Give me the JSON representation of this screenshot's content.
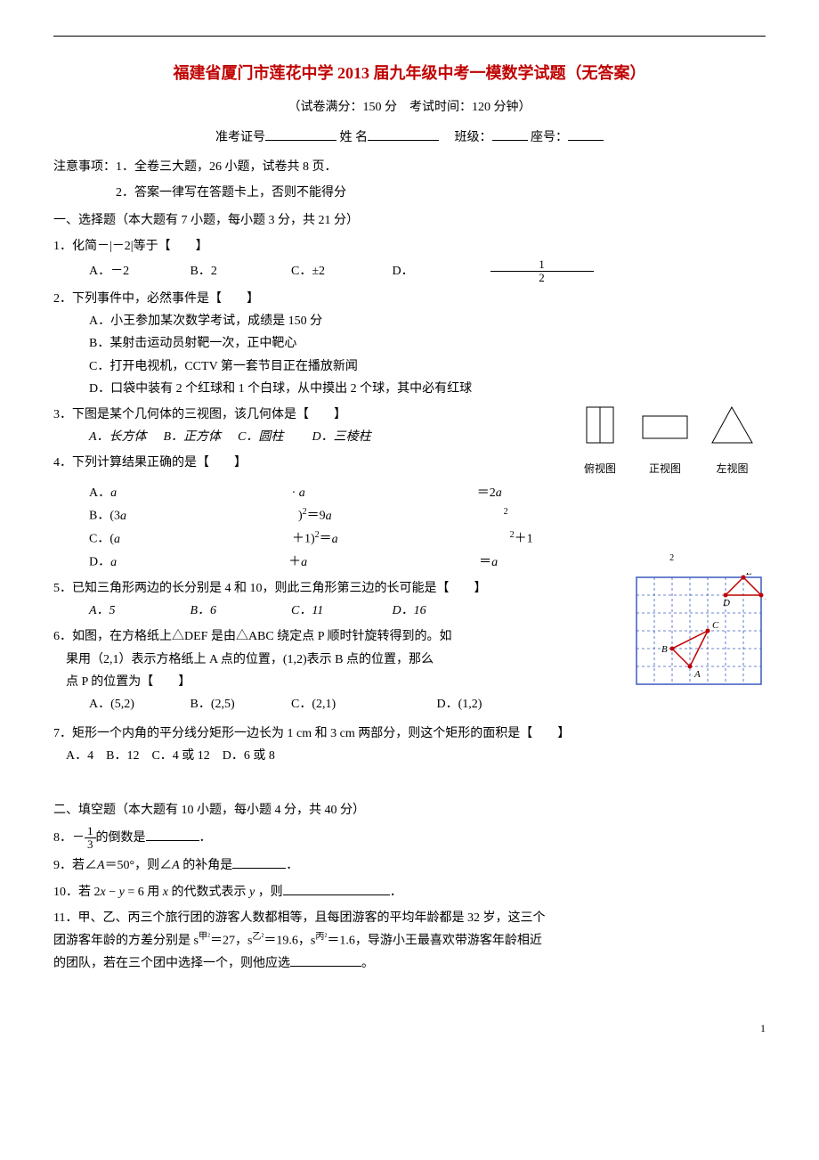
{
  "title": "福建省厦门市莲花中学 2013 届九年级中考一模数学试题（无答案）",
  "subtitle": "（试卷满分：150 分　考试时间：120 分钟）",
  "id_line": {
    "label_ticket": "准考证号",
    "label_name": "姓 名",
    "label_class": "班级：",
    "label_seat": "座号："
  },
  "notices": {
    "prefix": "注意事项：",
    "n1": "1．全卷三大题，26 小题，试卷共 8 页．",
    "n2": "2．答案一律写在答题卡上，否则不能得分"
  },
  "sec1": "一、选择题（本大题有 7 小题，每小题 3 分，共 21 分）",
  "q1": {
    "stem": "1．化简－|－2|等于【　　】",
    "A": "A．－2",
    "B": "B．2",
    "C": "C．±2",
    "D_prefix": "D．",
    "D_num": "1",
    "D_den": "2"
  },
  "q2": {
    "stem": "2．下列事件中，必然事件是【　　】",
    "A": "A．小王参加某次数学考试，成绩是 150 分",
    "B": "B．某射击运动员射靶一次，正中靶心",
    "C": "C．打开电视机，CCTV 第一套节目正在播放新闻",
    "D": "D．口袋中装有 2 个红球和 1 个白球，从中摸出 2 个球，其中必有红球"
  },
  "q3": {
    "stem": "3．下图是某个几何体的三视图，该几何体是【　　】",
    "A": "A．长方体",
    "B": "B．正方体",
    "C": "C．圆柱",
    "D": "D．三棱柱",
    "view_labels": {
      "top": "俯视图",
      "front": "正视图",
      "left": "左视图"
    }
  },
  "q4": {
    "stem": "4．下列计算结果正确的是【　　】",
    "A": "A．a · a＝2a",
    "B": "B．(3a)²＝9a²",
    "C": "C．(a＋1)²＝a²＋1",
    "D": "D．a＋a＝a²"
  },
  "q5": {
    "stem": "5．已知三角形两边的长分别是 4 和 10，则此三角形第三边的长可能是【　　】",
    "A": "A．5",
    "B": "B．6",
    "C": "C．11",
    "D": "D．16"
  },
  "q6": {
    "stem1": "6．如图，在方格纸上△DEF 是由△ABC 绕定点 P 顺时针旋转得到的。如",
    "stem2": "果用（2,1）表示方格纸上 A 点的位置，(1,2)表示 B 点的位置，那么",
    "stem3": "点 P 的位置为【　　】",
    "A": "A．(5,2)",
    "B": "B．(2,5)",
    "C": "C．(2,1)",
    "D": "D．(1,2)"
  },
  "q7": {
    "stem": "7．矩形一个内角的平分线分矩形一边长为 1 cm 和 3 cm 两部分，则这个矩形的面积是【　　】",
    "opts": "A．4　B．12　C．4 或 12　D．6 或 8"
  },
  "sec2": "二、填空题（本大题有 10 小题，每小题 4 分，共 40 分）",
  "q8": {
    "prefix": "8．－",
    "num": "1",
    "den": "3",
    "suffix": "的倒数是",
    "end": "．"
  },
  "q9": {
    "text_a": "9．若∠A＝50°，则∠A 的补角是",
    "text_b": "．"
  },
  "q10": {
    "text_a": "10．若 2x − y = 6 用 x 的代数式表示 y ，则",
    "text_b": "．"
  },
  "q11": {
    "line1": "11．甲、乙、丙三个旅行团的游客人数都相等，且每团游客的平均年龄都是 32 岁，这三个",
    "line2a": "团游客年龄的方差分别是 s",
    "sup1": "甲²",
    "line2b": "＝27，s",
    "sup2": "乙²",
    "line2c": "＝19.6，s",
    "sup3": "丙²",
    "line2d": "＝1.6，导游小王最喜欢带游客年龄相近",
    "line3a": "的团队，若在三个团中选择一个，则他应选",
    "line3b": "。"
  },
  "page_num": "1",
  "views_svg": {
    "stroke": "#000",
    "stroke_width": 1,
    "fill": "none"
  },
  "grid_svg": {
    "bg": "#ffffff",
    "grid_color": "#3b5bbf",
    "dash": "3,3",
    "border_color": "#3b5bbf",
    "triangle_color": "#c00000",
    "label_color": "#000",
    "cell": 20,
    "cols": 7,
    "rows": 6,
    "A": [
      3,
      5
    ],
    "B": [
      2,
      4
    ],
    "C": [
      4,
      3
    ],
    "D": [
      5,
      1
    ],
    "E": [
      6,
      0
    ],
    "F": [
      7,
      1
    ],
    "labels": {
      "A": "A",
      "B": "B",
      "C": "C",
      "D": "D",
      "E": "E",
      "F": "F"
    }
  }
}
